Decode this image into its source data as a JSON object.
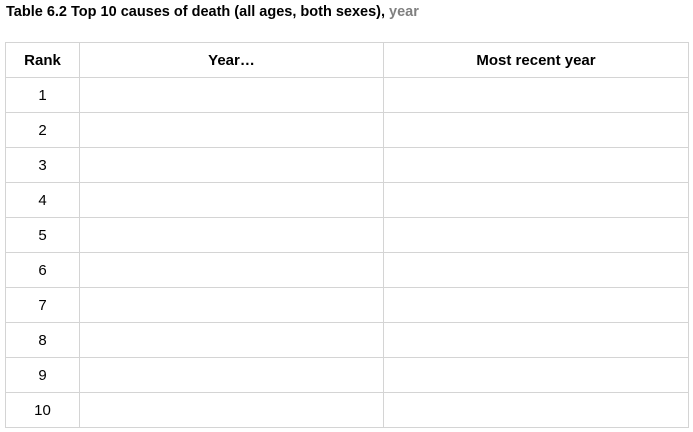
{
  "caption": {
    "main": "Table 6.2 Top 10 causes of death (all ages, both sexes), ",
    "suffix": "year"
  },
  "table": {
    "headers": [
      "Rank",
      "Year…",
      "Most recent year"
    ],
    "rows": [
      {
        "rank": "1",
        "year": "",
        "recent": ""
      },
      {
        "rank": "2",
        "year": "",
        "recent": ""
      },
      {
        "rank": "3",
        "year": "",
        "recent": ""
      },
      {
        "rank": "4",
        "year": "",
        "recent": ""
      },
      {
        "rank": "5",
        "year": "",
        "recent": ""
      },
      {
        "rank": "6",
        "year": "",
        "recent": ""
      },
      {
        "rank": "7",
        "year": "",
        "recent": ""
      },
      {
        "rank": "8",
        "year": "",
        "recent": ""
      },
      {
        "rank": "9",
        "year": "",
        "recent": ""
      },
      {
        "rank": "10",
        "year": "",
        "recent": ""
      }
    ]
  },
  "colors": {
    "border": "#d4d4d4",
    "suffix_text": "#808080"
  }
}
